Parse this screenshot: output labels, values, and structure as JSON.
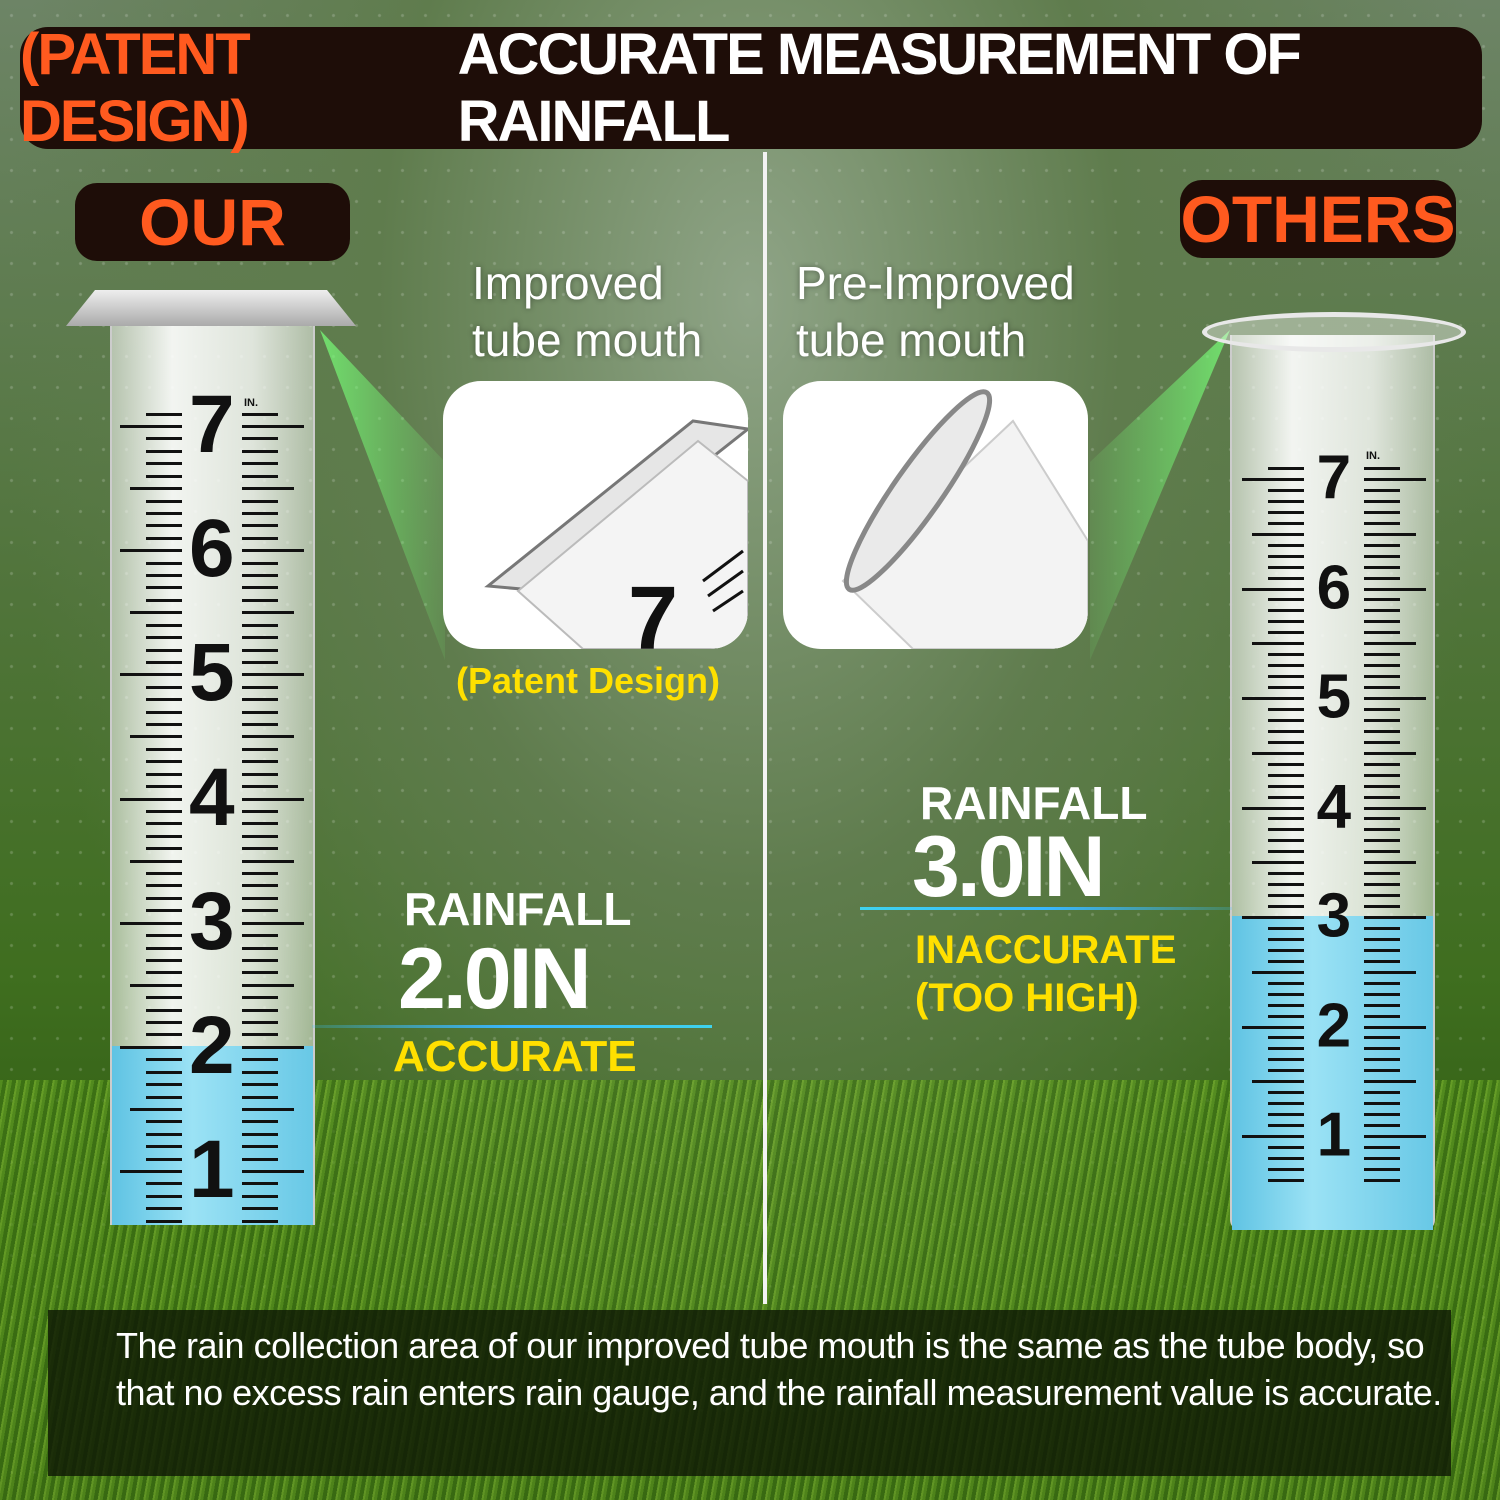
{
  "header": {
    "orange": "(PATENT DESIGN)",
    "white": "ACCURATE MEASUREMENT OF RAINFALL"
  },
  "left": {
    "badge": "OUR",
    "mouth_label_1": "Improved",
    "mouth_label_2": "tube mouth",
    "patent": "(Patent Design)",
    "rainfall_label": "RAINFALL",
    "rainfall_value": "2.0IN",
    "verdict": "ACCURATE",
    "gauge_unit": "IN.",
    "level_inches": 2.0
  },
  "right": {
    "badge": "OTHERS",
    "mouth_label_1": "Pre-Improved",
    "mouth_label_2": "tube mouth",
    "rainfall_label": "RAINFALL",
    "rainfall_value": "3.0IN",
    "verdict_1": "INACCURATE",
    "verdict_2": "(TOO HIGH)",
    "gauge_unit": "IN.",
    "level_inches": 3.0
  },
  "gauge_numbers": [
    "1",
    "2",
    "3",
    "4",
    "5",
    "6",
    "7"
  ],
  "footer": {
    "text": "The rain collection area of our improved tube mouth is the same as the tube body, so that no excess rain enters rain gauge, and the rainfall measurement value is accurate."
  },
  "colors": {
    "accent_orange": "#ff5a1f",
    "accent_yellow": "#ffe000",
    "water": "#7fd3ee",
    "bar": "#1e0d08"
  }
}
